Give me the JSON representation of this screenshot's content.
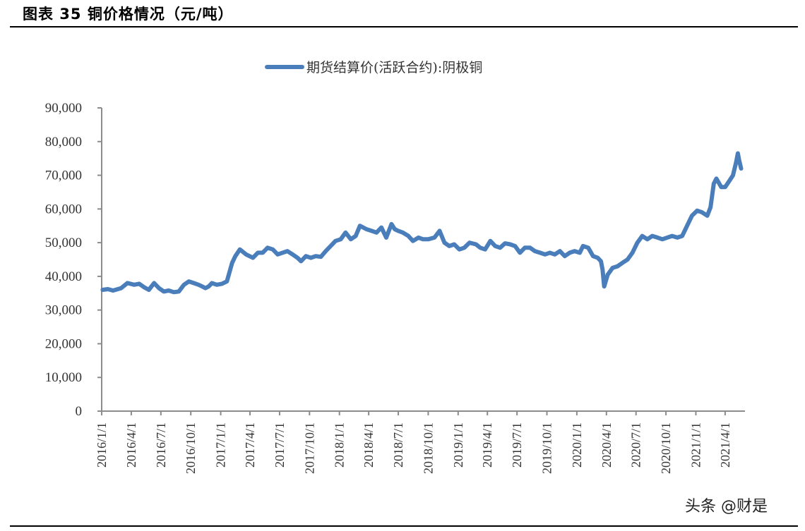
{
  "figure": {
    "title": "图表 35  铜价格情况（元/吨）",
    "watermark": "头条 @财是"
  },
  "colors": {
    "series": "#4A7EBB",
    "axis": "#8C8C8C",
    "text": "#333333"
  },
  "chart_data": {
    "type": "line",
    "title": "铜价格情况（元/吨）",
    "xlabel": "",
    "ylabel": "元/吨",
    "ylim": [
      0,
      90000
    ],
    "yticks": [
      0,
      10000,
      20000,
      30000,
      40000,
      50000,
      60000,
      70000,
      80000,
      90000
    ],
    "ytick_labels": [
      "0",
      "10,000",
      "20,000",
      "30,000",
      "40,000",
      "50,000",
      "60,000",
      "70,000",
      "80,000",
      "90,000"
    ],
    "xtick_labels": [
      "2016/1/1",
      "2016/4/1",
      "2016/7/1",
      "2016/10/1",
      "2017/1/1",
      "2017/4/1",
      "2017/7/1",
      "2017/10/1",
      "2018/1/1",
      "2018/4/1",
      "2018/7/1",
      "2018/10/1",
      "2019/1/1",
      "2019/4/1",
      "2019/7/1",
      "2019/10/1",
      "2020/1/1",
      "2020/4/1",
      "2020/7/1",
      "2020/10/1",
      "2021/1/1",
      "2021/4/1"
    ],
    "legend": {
      "position": "top",
      "entries": [
        "期货结算价(活跃合约):阴极铜"
      ]
    },
    "grid": false,
    "series": [
      {
        "name": "期货结算价(活跃合约):阴极铜",
        "x": [
          "2016/1/4",
          "2016/1/20",
          "2016/2/5",
          "2016/3/1",
          "2016/3/20",
          "2016/4/10",
          "2016/4/25",
          "2016/5/10",
          "2016/5/25",
          "2016/6/10",
          "2016/6/25",
          "2016/7/10",
          "2016/7/25",
          "2016/8/10",
          "2016/8/25",
          "2016/9/10",
          "2016/9/25",
          "2016/10/10",
          "2016/10/25",
          "2016/11/5",
          "2016/11/15",
          "2016/11/25",
          "2016/12/5",
          "2016/12/20",
          "2017/1/5",
          "2017/1/20",
          "2017/2/5",
          "2017/2/15",
          "2017/3/1",
          "2017/3/20",
          "2017/4/10",
          "2017/4/25",
          "2017/5/10",
          "2017/5/25",
          "2017/6/10",
          "2017/6/25",
          "2017/7/10",
          "2017/7/25",
          "2017/8/10",
          "2017/8/25",
          "2017/9/5",
          "2017/9/20",
          "2017/10/5",
          "2017/10/20",
          "2017/11/5",
          "2017/11/20",
          "2017/12/5",
          "2017/12/20",
          "2018/1/5",
          "2018/1/20",
          "2018/2/5",
          "2018/2/20",
          "2018/3/5",
          "2018/3/25",
          "2018/4/10",
          "2018/4/25",
          "2018/5/10",
          "2018/5/25",
          "2018/6/10",
          "2018/6/20",
          "2018/7/1",
          "2018/7/15",
          "2018/8/1",
          "2018/8/15",
          "2018/9/1",
          "2018/9/15",
          "2018/10/1",
          "2018/10/20",
          "2018/11/5",
          "2018/11/20",
          "2018/12/5",
          "2018/12/20",
          "2019/1/5",
          "2019/1/20",
          "2019/2/5",
          "2019/2/25",
          "2019/3/10",
          "2019/3/25",
          "2019/4/10",
          "2019/4/25",
          "2019/5/10",
          "2019/5/25",
          "2019/6/10",
          "2019/6/25",
          "2019/7/10",
          "2019/7/25",
          "2019/8/10",
          "2019/8/25",
          "2019/9/10",
          "2019/9/25",
          "2019/10/10",
          "2019/10/25",
          "2019/11/10",
          "2019/11/25",
          "2019/12/10",
          "2019/12/25",
          "2020/1/10",
          "2020/1/20",
          "2020/2/5",
          "2020/2/20",
          "2020/3/5",
          "2020/3/15",
          "2020/3/20",
          "2020/3/25",
          "2020/4/5",
          "2020/4/20",
          "2020/5/5",
          "2020/5/20",
          "2020/6/5",
          "2020/6/20",
          "2020/7/5",
          "2020/7/20",
          "2020/8/5",
          "2020/8/20",
          "2020/9/5",
          "2020/9/20",
          "2020/10/5",
          "2020/10/20",
          "2020/11/5",
          "2020/11/20",
          "2020/12/5",
          "2020/12/20",
          "2021/1/5",
          "2021/1/20",
          "2021/2/5",
          "2021/2/15",
          "2021/2/25",
          "2021/3/5",
          "2021/3/20",
          "2021/4/1",
          "2021/4/15",
          "2021/4/25",
          "2021/5/5",
          "2021/5/10",
          "2021/5/14",
          "2021/5/20"
        ],
        "values": [
          36000,
          36200,
          35800,
          36500,
          38000,
          37500,
          37800,
          36800,
          36000,
          38000,
          36500,
          35500,
          35800,
          35300,
          35500,
          37500,
          38500,
          38000,
          37500,
          37000,
          36500,
          37000,
          38000,
          37500,
          37800,
          38500,
          44000,
          46000,
          48000,
          46500,
          45500,
          47000,
          47000,
          48500,
          48000,
          46500,
          47000,
          47500,
          46500,
          45500,
          44500,
          46000,
          45500,
          46000,
          45800,
          47500,
          49000,
          50500,
          51000,
          53000,
          51000,
          52000,
          55000,
          54000,
          53500,
          53000,
          54500,
          51500,
          55500,
          54000,
          53500,
          53000,
          52000,
          50500,
          51500,
          51000,
          51000,
          51500,
          53500,
          50000,
          49000,
          49500,
          48000,
          48500,
          50000,
          49500,
          48500,
          48000,
          50500,
          49000,
          48500,
          49800,
          49500,
          49000,
          47000,
          48500,
          48500,
          47500,
          47000,
          46500,
          47000,
          46500,
          47500,
          46000,
          47000,
          47500,
          47000,
          49000,
          48500,
          46000,
          45500,
          44500,
          42000,
          37000,
          40500,
          42500,
          43000,
          44000,
          45000,
          47000,
          50000,
          52000,
          51000,
          52000,
          51500,
          51000,
          51500,
          52000,
          51500,
          52000,
          55000,
          58000,
          59500,
          59000,
          58000,
          60500,
          67500,
          69000,
          66500,
          66500,
          68500,
          70000,
          74000,
          76500,
          74500,
          72000
        ]
      }
    ]
  }
}
